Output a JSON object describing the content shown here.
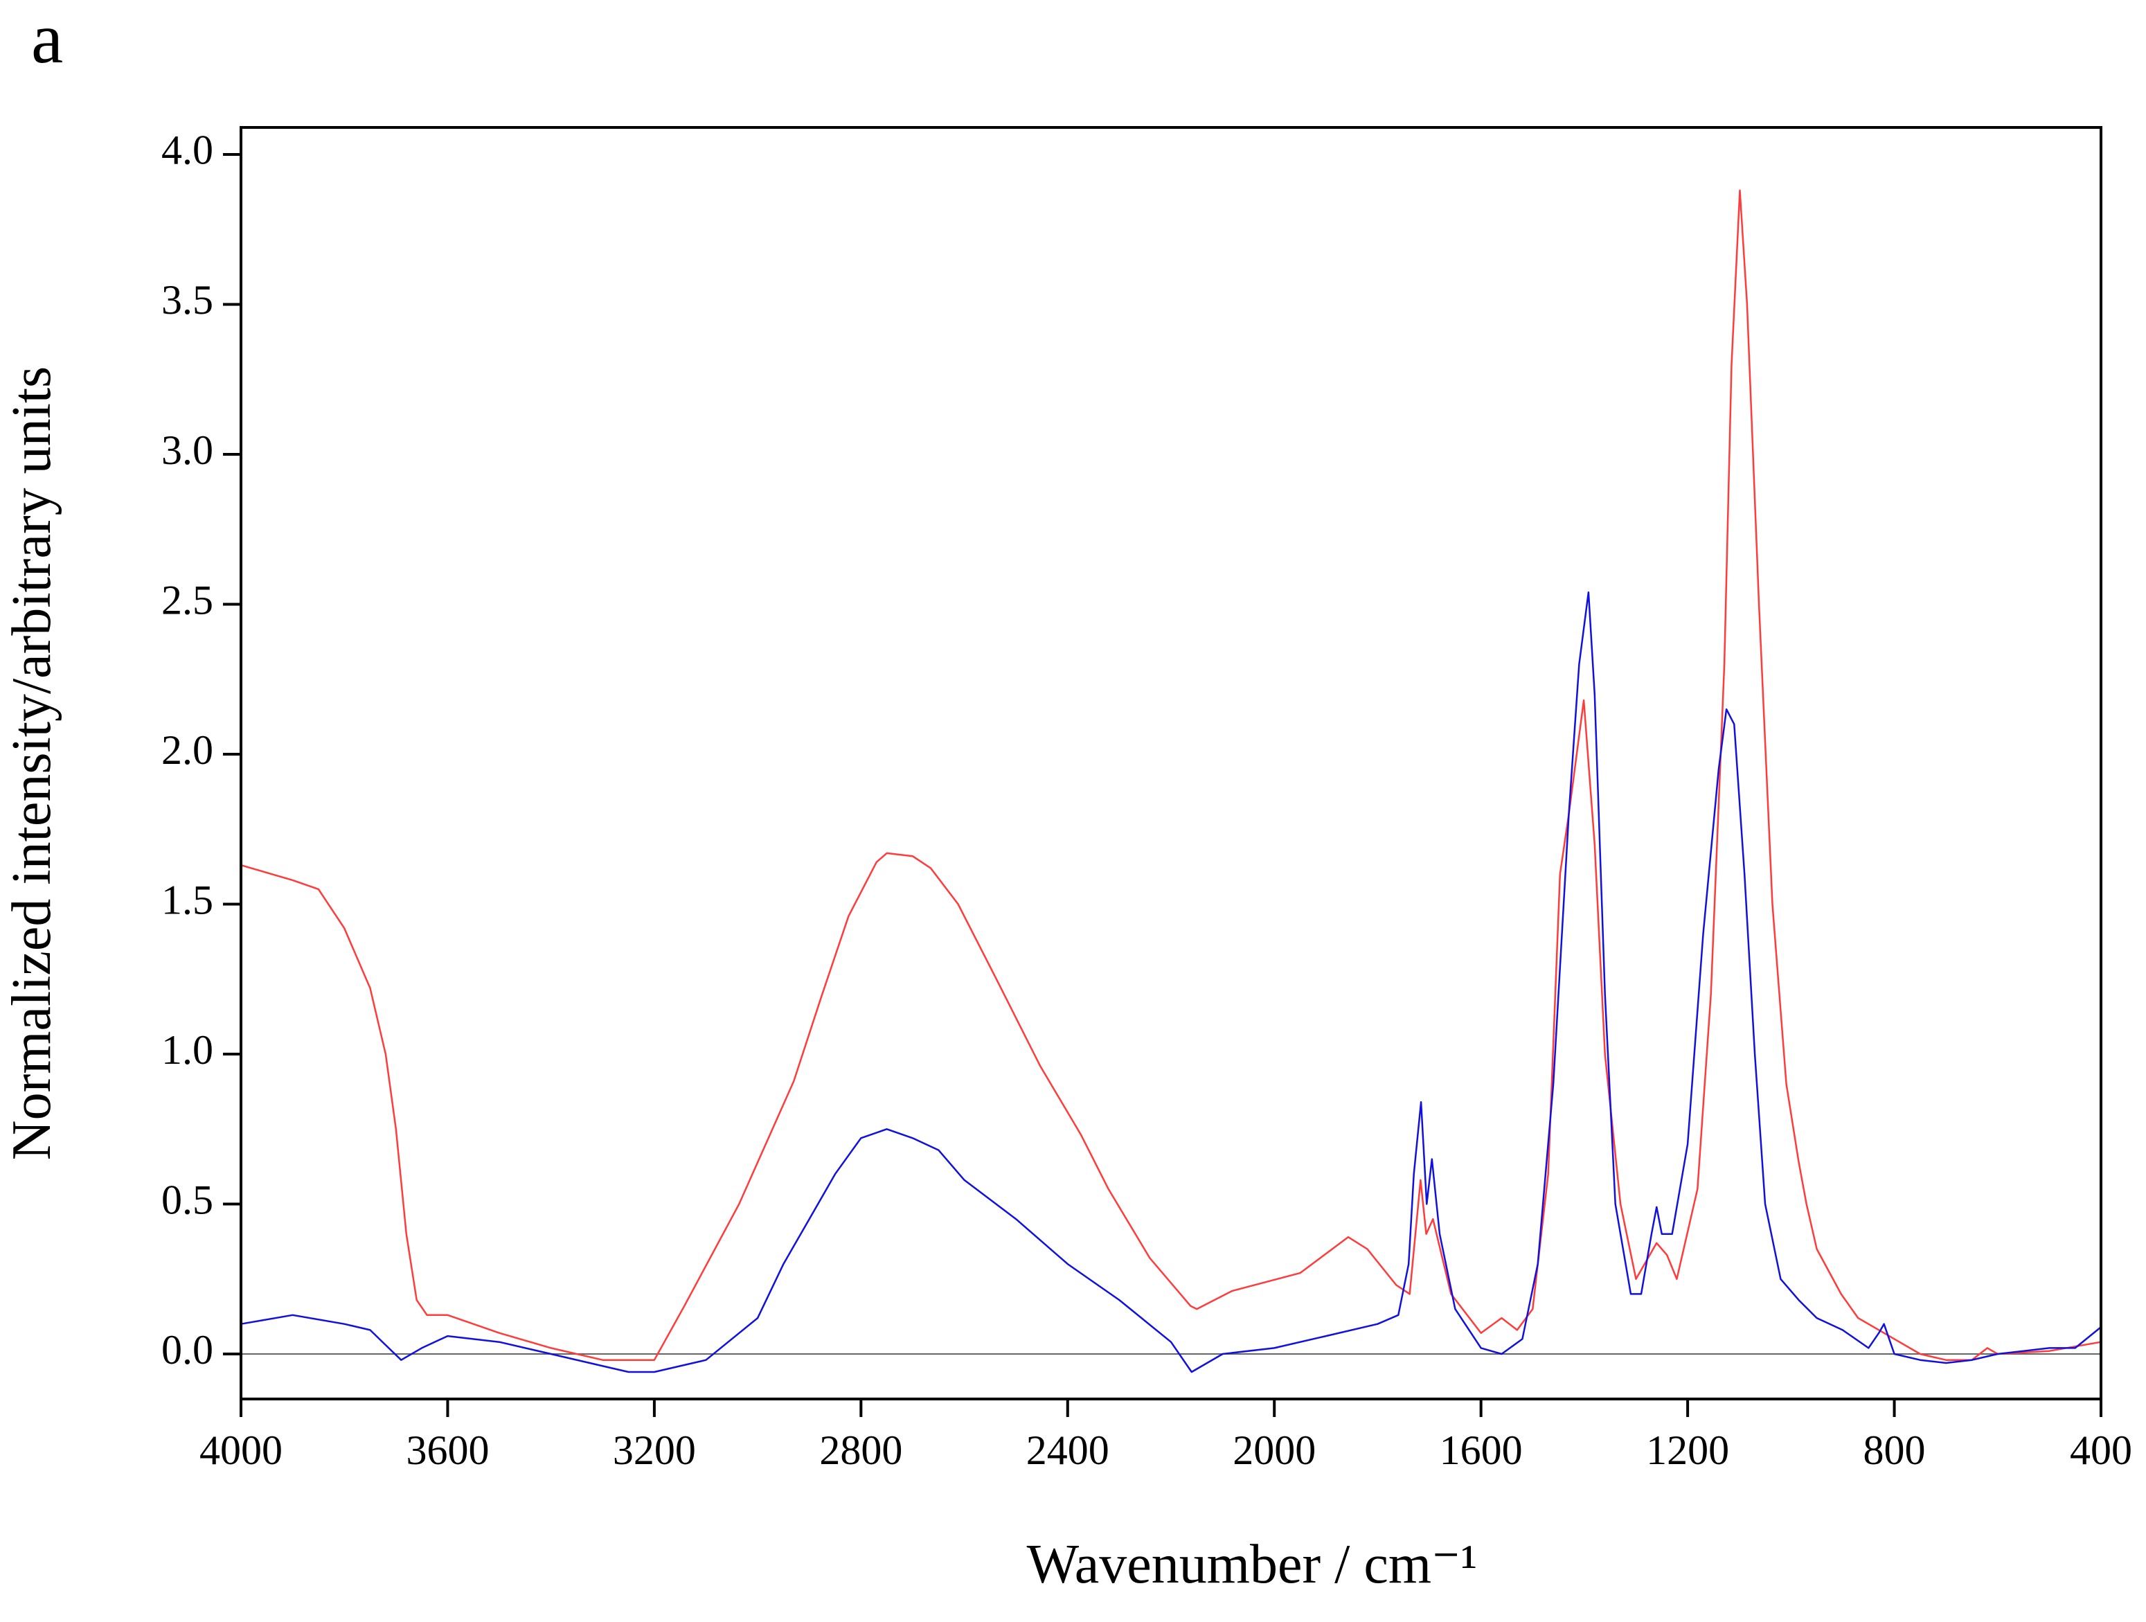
{
  "chart_data": {
    "type": "line",
    "panel_label": "a",
    "xlabel": "Wavenumber / cm⁻¹",
    "ylabel": "Normalized intensity/arbitrary units",
    "xlim": [
      4000,
      400
    ],
    "xticks": [
      4000,
      3600,
      3200,
      2800,
      2400,
      2000,
      1600,
      1200,
      800,
      400
    ],
    "ylim": [
      -0.15,
      4.09
    ],
    "yticks": [
      {
        "value": 0,
        "label": "0.0"
      },
      0.5,
      {
        "value": 1,
        "label": "1.0"
      },
      1.5,
      {
        "value": 2,
        "label": "2.0"
      },
      2.5,
      {
        "value": 3,
        "label": "3.0"
      },
      3.5,
      {
        "value": 4,
        "label": "4.0"
      }
    ],
    "zero_line": true,
    "grid": false,
    "series": [
      {
        "color": "#ff3b3b",
        "x": [
          4000,
          3900,
          3850,
          3800,
          3750,
          3720,
          3700,
          3680,
          3660,
          3640,
          3600,
          3500,
          3400,
          3300,
          3200,
          3142,
          3036,
          2930,
          2877,
          2824,
          2770,
          2750,
          2700,
          2665,
          2612,
          2532,
          2453,
          2374,
          2321,
          2241,
          2162,
          2150,
          2082,
          1950,
          1857,
          1820,
          1764,
          1738,
          1717,
          1706,
          1693,
          1658,
          1600,
          1560,
          1530,
          1500,
          1470,
          1447,
          1430,
          1401,
          1380,
          1360,
          1330,
          1300,
          1260,
          1240,
          1221,
          1181,
          1155,
          1129,
          1115,
          1099,
          1085,
          1062,
          1036,
          1009,
          985,
          970,
          950,
          903,
          870,
          820,
          800,
          750,
          700,
          650,
          620,
          600,
          500,
          400
        ],
        "values": [
          1.63,
          1.58,
          1.55,
          1.42,
          1.22,
          1.0,
          0.75,
          0.4,
          0.18,
          0.13,
          0.13,
          0.07,
          0.02,
          -0.02,
          -0.02,
          0.16,
          0.5,
          0.91,
          1.19,
          1.46,
          1.64,
          1.67,
          1.66,
          1.62,
          1.5,
          1.23,
          0.96,
          0.73,
          0.55,
          0.32,
          0.16,
          0.15,
          0.21,
          0.27,
          0.39,
          0.35,
          0.23,
          0.2,
          0.58,
          0.4,
          0.45,
          0.2,
          0.07,
          0.12,
          0.08,
          0.15,
          0.6,
          1.6,
          1.8,
          2.18,
          1.7,
          1.0,
          0.5,
          0.25,
          0.37,
          0.33,
          0.25,
          0.55,
          1.2,
          2.3,
          3.3,
          3.88,
          3.5,
          2.5,
          1.5,
          0.9,
          0.64,
          0.5,
          0.35,
          0.2,
          0.12,
          0.07,
          0.05,
          0.0,
          -0.02,
          -0.02,
          0.02,
          0.0,
          0.01,
          0.04
        ]
      },
      {
        "color": "#1010e0",
        "x": [
          4000,
          3900,
          3800,
          3750,
          3720,
          3690,
          3650,
          3600,
          3500,
          3400,
          3300,
          3250,
          3200,
          3100,
          3000,
          2950,
          2900,
          2850,
          2800,
          2750,
          2700,
          2650,
          2600,
          2500,
          2400,
          2300,
          2200,
          2160,
          2100,
          2000,
          1900,
          1800,
          1760,
          1740,
          1730,
          1716,
          1705,
          1695,
          1680,
          1650,
          1600,
          1560,
          1520,
          1490,
          1460,
          1430,
          1410,
          1392,
          1380,
          1360,
          1340,
          1310,
          1290,
          1270,
          1260,
          1250,
          1230,
          1200,
          1170,
          1140,
          1125,
          1110,
          1090,
          1070,
          1050,
          1020,
          985,
          950,
          900,
          850,
          830,
          820,
          800,
          750,
          700,
          650,
          600,
          500,
          450,
          400
        ],
        "values": [
          0.1,
          0.13,
          0.1,
          0.08,
          0.03,
          -0.02,
          0.02,
          0.06,
          0.04,
          0.0,
          -0.04,
          -0.06,
          -0.06,
          -0.02,
          0.12,
          0.3,
          0.45,
          0.6,
          0.72,
          0.75,
          0.72,
          0.68,
          0.58,
          0.45,
          0.3,
          0.18,
          0.04,
          -0.06,
          0.0,
          0.02,
          0.06,
          0.1,
          0.13,
          0.3,
          0.6,
          0.84,
          0.5,
          0.65,
          0.4,
          0.15,
          0.02,
          0.0,
          0.05,
          0.3,
          0.9,
          1.8,
          2.3,
          2.54,
          2.2,
          1.2,
          0.5,
          0.2,
          0.2,
          0.4,
          0.49,
          0.4,
          0.4,
          0.7,
          1.4,
          1.95,
          2.15,
          2.1,
          1.6,
          1.0,
          0.5,
          0.25,
          0.18,
          0.12,
          0.08,
          0.02,
          0.07,
          0.1,
          0.0,
          -0.02,
          -0.03,
          -0.02,
          0.0,
          0.02,
          0.02,
          0.09
        ]
      }
    ]
  }
}
